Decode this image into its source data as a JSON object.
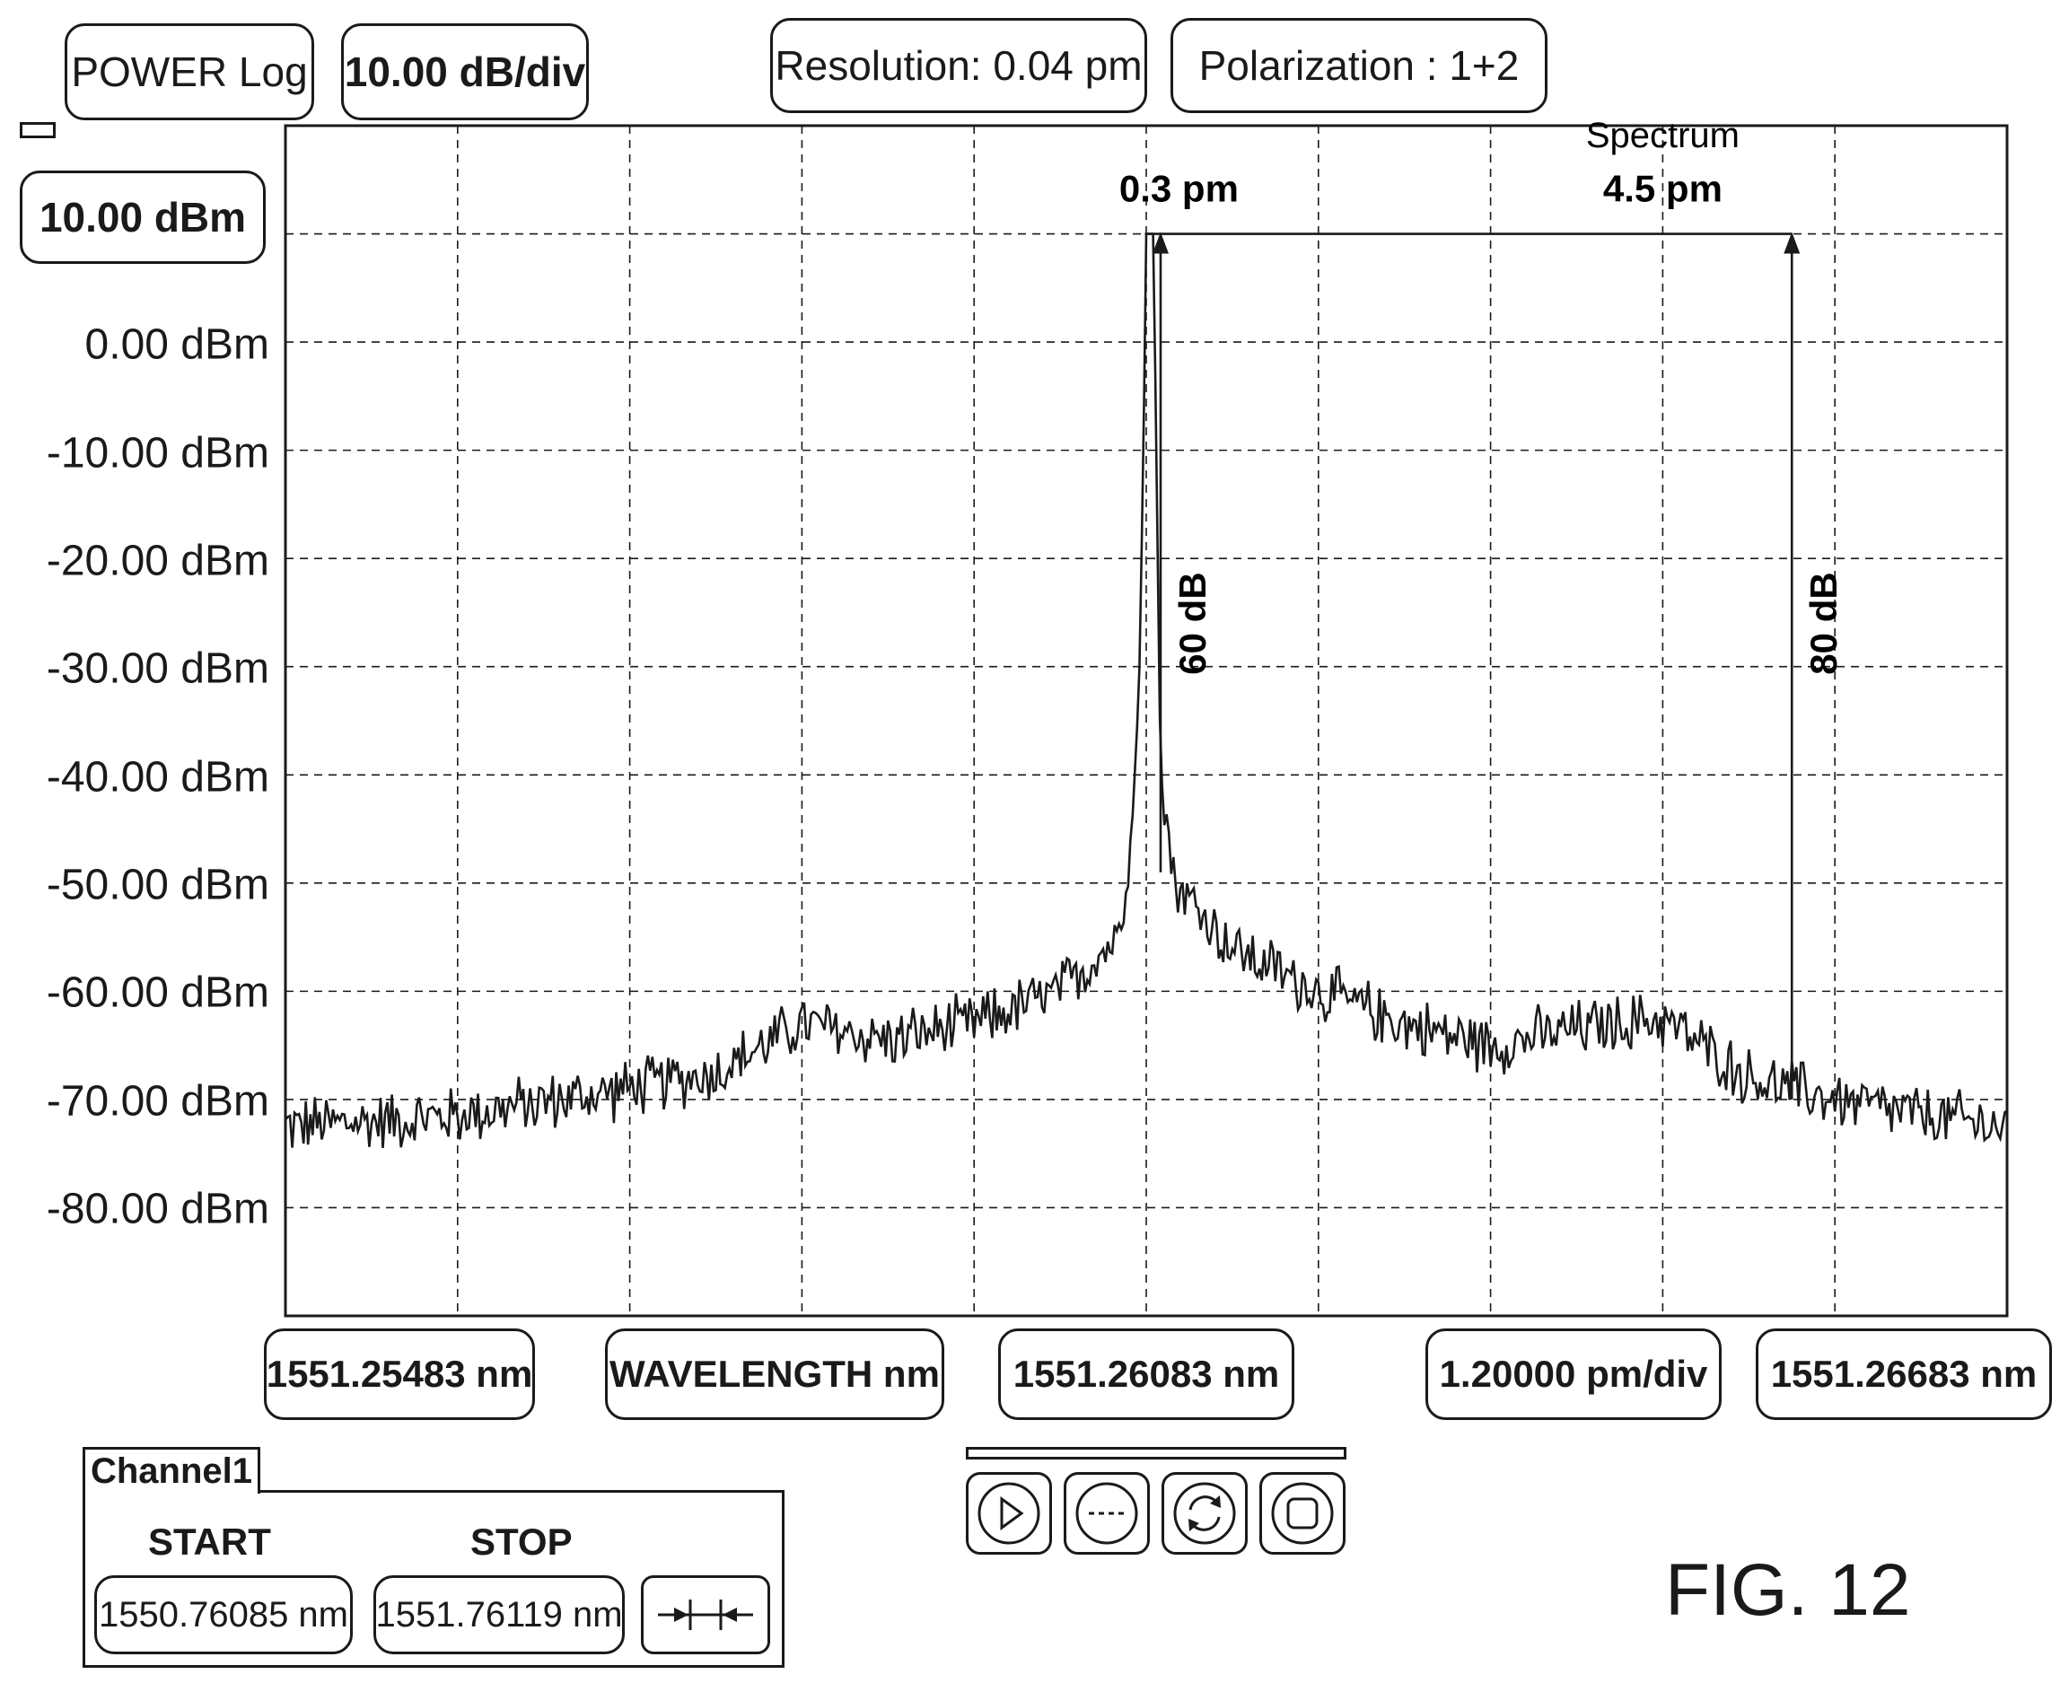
{
  "header": {
    "power_mode": "POWER Log",
    "scale": "10.00 dB/div",
    "resolution": "Resolution: 0.04 pm",
    "polarization": "Polarization : 1+2"
  },
  "ref_level": "10.00 dBm",
  "bottom": {
    "start_wl": "1551.25483 nm",
    "axis_label": "WAVELENGTH nm",
    "center_wl": "1551.26083 nm",
    "span_per_div": "1.20000 pm/div",
    "stop_wl": "1551.26683 nm"
  },
  "channel": {
    "tab": "Channel1",
    "start_label": "START",
    "stop_label": "STOP",
    "start_value": "1550.76085 nm",
    "stop_value": "1551.76119 nm"
  },
  "controls": [
    {
      "name": "play-icon"
    },
    {
      "name": "dashed-line-icon"
    },
    {
      "name": "refresh-icon"
    },
    {
      "name": "stop-icon"
    }
  ],
  "figure_label": "FIG. 12",
  "chart_data": {
    "type": "line",
    "xlabel": "WAVELENGTH nm",
    "ylabel": "",
    "xlim": [
      1551.25483,
      1551.26683
    ],
    "ylim": [
      -90,
      20
    ],
    "x_unit": "nm",
    "y_unit": "dBm",
    "y_ticks": [
      "10.00 dBm",
      "0.00 dBm",
      "-10.00 dBm",
      "-20.00 dBm",
      "-30.00 dBm",
      "-40.00 dBm",
      "-50.00 dBm",
      "-60.00 dBm",
      "-70.00 dBm",
      "-80.00 dBm"
    ],
    "y_tick_values": [
      10,
      0,
      -10,
      -20,
      -30,
      -40,
      -50,
      -60,
      -70,
      -80
    ],
    "grid": true,
    "series": [
      {
        "envelope_x": [
          1551.25483,
          1551.25603,
          1551.25723,
          1551.25783,
          1551.25843,
          1551.25903,
          1551.25963,
          1551.26023,
          1551.26063,
          1551.26073,
          1551.26078,
          1551.26081,
          1551.26083,
          1551.26088,
          1551.26093,
          1551.26098,
          1551.26103,
          1551.26143,
          1551.26203,
          1551.26263,
          1551.26323,
          1551.26383,
          1551.26443,
          1551.26503,
          1551.26563,
          1551.26623,
          1551.26683
        ],
        "envelope_y": [
          -72.5,
          -71.5,
          -69,
          -67.5,
          -63,
          -64.5,
          -63,
          -60,
          -55,
          -45,
          -32,
          -10,
          10,
          10,
          -40,
          -45,
          -50,
          -56,
          -60,
          -63,
          -65,
          -63.5,
          -62.5,
          -68,
          -70,
          -71.5,
          -72.5
        ],
        "noise_amplitude_db": 2.5
      }
    ],
    "annotations": [
      {
        "text": "0.3 pm",
        "x": 1551.26087,
        "y": 13
      },
      {
        "text": "60 dB",
        "x": 1551.26093,
        "from_y": -49,
        "to_y": 10
      },
      {
        "text": "Spectrum",
        "x": 1551.26443,
        "y": 18
      },
      {
        "text": "4.5 pm",
        "x": 1551.26443,
        "y": 13
      },
      {
        "text": "80 dB",
        "x": 1551.26533,
        "from_y": -70,
        "to_y": 10
      }
    ]
  }
}
